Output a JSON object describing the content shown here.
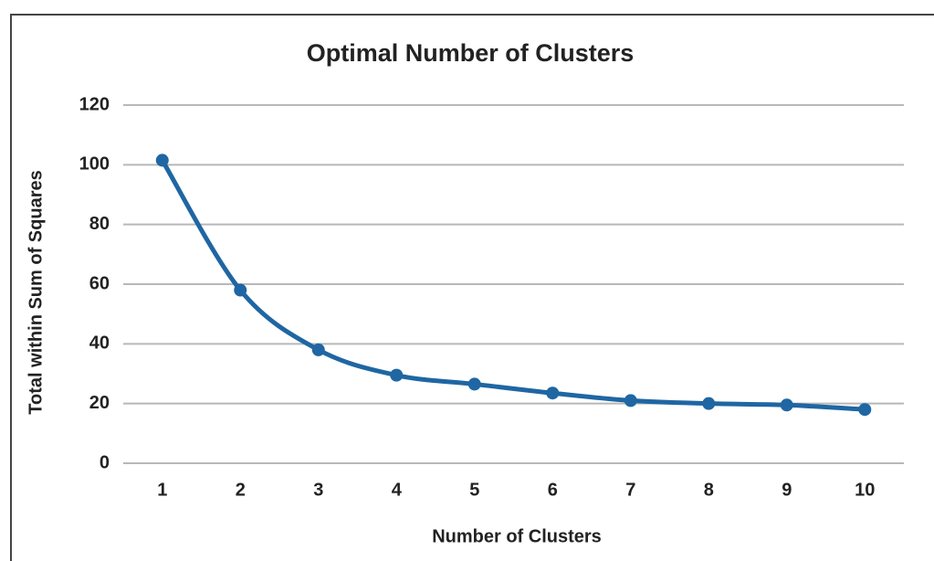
{
  "chart_data": {
    "type": "line",
    "title": "Optimal Number of Clusters",
    "x_label": "Number of Clusters",
    "y_label": "Total within Sum of Squares",
    "categories": [
      "1",
      "2",
      "3",
      "4",
      "5",
      "6",
      "7",
      "8",
      "9",
      "10"
    ],
    "series": [
      {
        "name": "Total within Sum of Squares",
        "color": "#1f66a3",
        "values": [
          101.5,
          58,
          38,
          29.5,
          26.5,
          23.5,
          21,
          20,
          19.5,
          18
        ]
      }
    ],
    "ylim": [
      0,
      120
    ],
    "yticks": [
      0,
      20,
      40,
      60,
      80,
      100,
      120
    ],
    "grid": true,
    "smooth": true
  }
}
